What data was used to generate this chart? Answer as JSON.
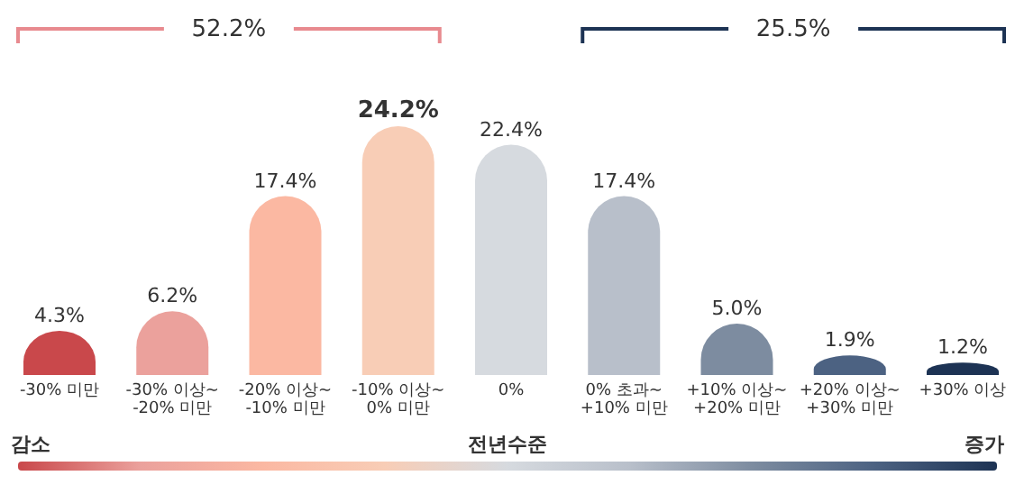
{
  "chart_data": {
    "type": "bar",
    "categories": [
      "-30% 미만",
      "-30% 이상~\n-20% 미만",
      "-20% 이상~\n-10% 미만",
      "-10% 이상~\n0% 미만",
      "0%",
      "0% 초과~\n+10% 미만",
      "+10% 이상~\n+20% 미만",
      "+20% 이상~\n+30% 미만",
      "+30% 이상"
    ],
    "values": [
      4.3,
      6.2,
      17.4,
      24.2,
      22.4,
      17.4,
      5.0,
      1.9,
      1.2
    ],
    "colors": [
      "#c9484b",
      "#eba19c",
      "#fbb8a2",
      "#f8cdb6",
      "#d6dadf",
      "#b8bfca",
      "#7d8ca0",
      "#4c6282",
      "#1d3354"
    ],
    "value_labels": [
      "4.3%",
      "6.2%",
      "17.4%",
      "24.2%",
      "22.4%",
      "17.4%",
      "5.0%",
      "1.9%",
      "1.2%"
    ],
    "annotations": [
      "52.2%",
      "25.5%",
      "감소",
      "전년수준",
      "증가"
    ]
  }
}
